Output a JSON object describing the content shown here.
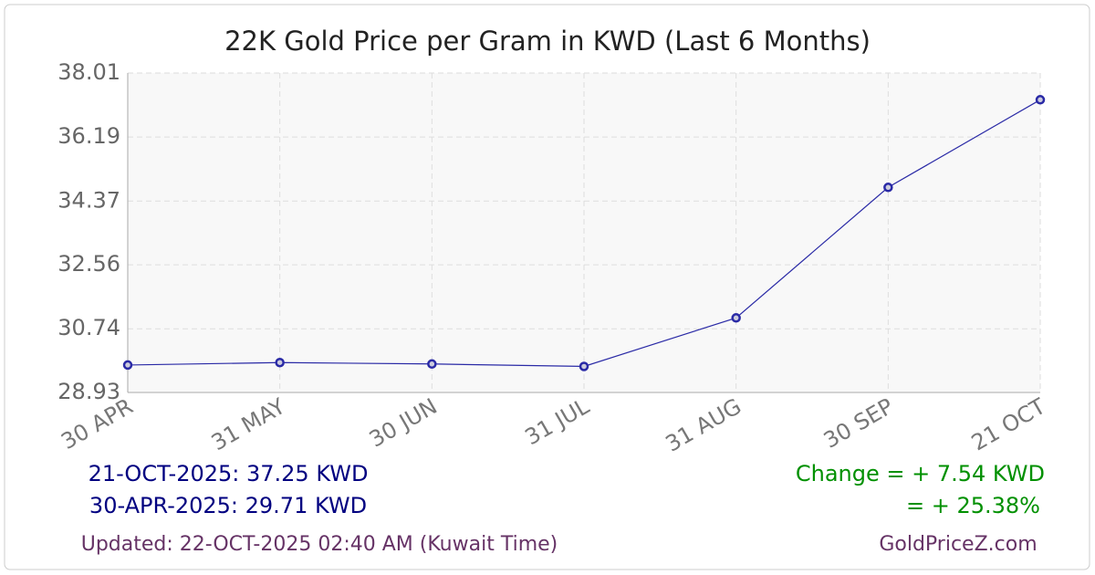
{
  "chart_data": {
    "type": "line",
    "title": "22K Gold Price per Gram in KWD (Last 6 Months)",
    "categories": [
      "30 APR",
      "31 MAY",
      "30 JUN",
      "31 JUL",
      "31 AUG",
      "30 SEP",
      "21 OCT"
    ],
    "values": [
      29.71,
      29.78,
      29.74,
      29.67,
      31.05,
      34.76,
      37.25
    ],
    "color": "#2a2aa6",
    "ylim": [
      28.93,
      38.01
    ],
    "yticks": [
      28.93,
      30.74,
      32.56,
      34.37,
      36.19,
      38.01
    ],
    "grid": true
  },
  "summary": {
    "latest": "21-OCT-2025: 37.25 KWD",
    "first": "30-APR-2025: 29.71 KWD",
    "change": "Change = + 7.54 KWD",
    "change_percent": "= + 25.38%"
  },
  "footer": {
    "updated": "Updated: 22-OCT-2025 02:40 AM (Kuwait Time)",
    "site": "GoldPriceZ.com"
  }
}
